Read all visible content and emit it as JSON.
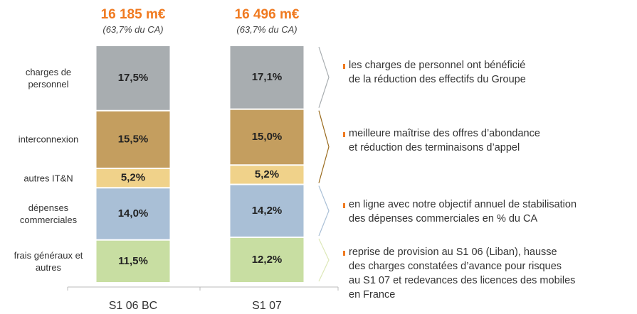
{
  "chart_data": {
    "type": "stacked_bar",
    "categories": [
      "S1 06 BC",
      "S1 07"
    ],
    "annotations": [
      {
        "value": "16 185 m€",
        "note": "(63,7% du CA)"
      },
      {
        "value": "16 496 m€",
        "note": "(63,7% du CA)"
      }
    ],
    "series": [
      {
        "name": "frais généraux et autres",
        "color": "#c8dea2",
        "values": [
          11.5,
          12.2
        ],
        "value_labels": [
          "11,5%",
          "12,2%"
        ]
      },
      {
        "name": "dépenses commerciales",
        "color": "#a9bfd6",
        "values": [
          14.0,
          14.2
        ],
        "value_labels": [
          "14,0%",
          "14,2%"
        ]
      },
      {
        "name": "autres IT&N",
        "color": "#f0d28a",
        "values": [
          5.2,
          5.2
        ],
        "value_labels": [
          "5,2%",
          "5,2%"
        ]
      },
      {
        "name": "interconnexion",
        "color": "#c49e5f",
        "values": [
          15.5,
          15.0
        ],
        "value_labels": [
          "15,5%",
          "15,0%"
        ]
      },
      {
        "name": "charges de personnel",
        "color": "#a8adb0",
        "values": [
          17.5,
          17.1
        ],
        "value_labels": [
          "17,5%",
          "17,1%"
        ]
      }
    ],
    "comments": [
      [
        "les charges de personnel ont bénéficié",
        "de la réduction des effectifs du Groupe"
      ],
      [
        "meilleure maîtrise des offres d’abondance",
        "et réduction des terminaisons d’appel"
      ],
      [
        "en ligne avec notre objectif annuel de stabilisation",
        "des dépenses commerciales en % du CA"
      ],
      [
        "reprise de provision au S1 06 (Liban), hausse",
        "des charges constatées d’avance pour risques",
        "au S1 07 et redevances des licences des mobiles",
        "en France"
      ]
    ]
  }
}
